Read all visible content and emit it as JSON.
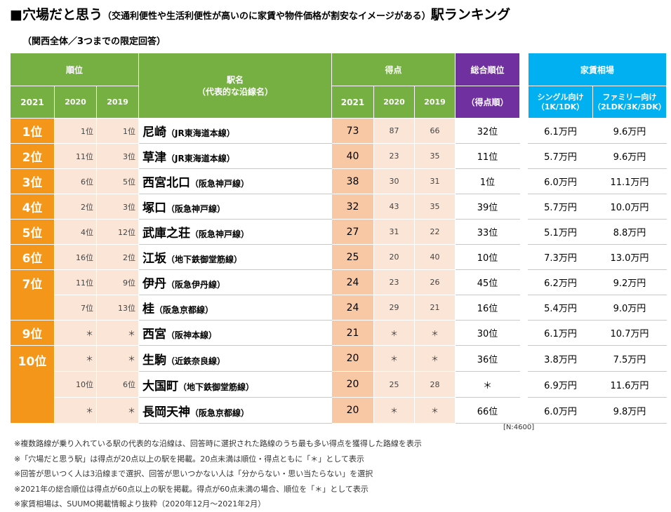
{
  "title": {
    "main": "■穴場だと思う",
    "paren": "（交通利便性や生活利便性が高いのに家賃や物件価格が割安なイメージがある）",
    "tail": "駅ランキング"
  },
  "subtitle": "（関西全体／3つまでの限定回答）",
  "header": {
    "rank_group": "順位",
    "y2021": "2021",
    "y2020": "2020",
    "y2019": "2019",
    "station": "駅名",
    "station_sub": "（代表的な沿線名）",
    "score_group": "得点",
    "overall": "総合順位",
    "overall_sub": "（得点順）",
    "rent_group": "家賃相場",
    "single": "シングル向け（1K/1DK）",
    "family": "ファミリー向け（2LDK/3K/3DK）"
  },
  "rows": [
    {
      "rank2021": "1位",
      "rank2020": "1位",
      "rank2019": "1位",
      "name": "尼崎",
      "line": "（JR東海道本線）",
      "pt2021": "73",
      "pt2020": "87",
      "pt2019": "66",
      "overall": "32位",
      "single": "6.1万円",
      "family": "9.6万円"
    },
    {
      "rank2021": "2位",
      "rank2020": "11位",
      "rank2019": "3位",
      "name": "草津",
      "line": "（JR東海道本線）",
      "pt2021": "40",
      "pt2020": "23",
      "pt2019": "35",
      "overall": "11位",
      "single": "5.7万円",
      "family": "9.6万円"
    },
    {
      "rank2021": "3位",
      "rank2020": "6位",
      "rank2019": "5位",
      "name": "西宮北口",
      "line": "（阪急神戸線）",
      "pt2021": "38",
      "pt2020": "30",
      "pt2019": "31",
      "overall": "1位",
      "single": "6.0万円",
      "family": "11.1万円"
    },
    {
      "rank2021": "4位",
      "rank2020": "2位",
      "rank2019": "3位",
      "name": "塚口",
      "line": "（阪急神戸線）",
      "pt2021": "32",
      "pt2020": "43",
      "pt2019": "35",
      "overall": "39位",
      "single": "5.7万円",
      "family": "10.0万円"
    },
    {
      "rank2021": "5位",
      "rank2020": "4位",
      "rank2019": "12位",
      "name": "武庫之荘",
      "line": "（阪急神戸線）",
      "pt2021": "27",
      "pt2020": "31",
      "pt2019": "22",
      "overall": "33位",
      "single": "5.1万円",
      "family": "8.8万円"
    },
    {
      "rank2021": "6位",
      "rank2020": "16位",
      "rank2019": "2位",
      "name": "江坂",
      "line": "（地下鉄御堂筋線）",
      "pt2021": "25",
      "pt2020": "20",
      "pt2019": "40",
      "overall": "10位",
      "single": "7.3万円",
      "family": "13.0万円"
    },
    {
      "rank2021": "7位",
      "rank2020": "11位",
      "rank2019": "9位",
      "name": "伊丹",
      "line": "（阪急伊丹線）",
      "pt2021": "24",
      "pt2020": "23",
      "pt2019": "26",
      "overall": "45位",
      "single": "6.2万円",
      "family": "9.2万円"
    },
    {
      "rank2021": "",
      "rank2020": "7位",
      "rank2019": "13位",
      "name": "桂",
      "line": "（阪急京都線）",
      "pt2021": "24",
      "pt2020": "29",
      "pt2019": "21",
      "overall": "16位",
      "single": "5.4万円",
      "family": "9.0万円"
    },
    {
      "rank2021": "9位",
      "rank2020": "＊",
      "rank2019": "＊",
      "name": "西宮",
      "line": "（阪神本線）",
      "pt2021": "21",
      "pt2020": "＊",
      "pt2019": "＊",
      "overall": "30位",
      "single": "6.1万円",
      "family": "10.7万円"
    },
    {
      "rank2021": "10位",
      "rank2020": "＊",
      "rank2019": "＊",
      "name": "生駒",
      "line": "（近鉄奈良線）",
      "pt2021": "20",
      "pt2020": "＊",
      "pt2019": "＊",
      "overall": "36位",
      "single": "3.8万円",
      "family": "7.5万円"
    },
    {
      "rank2021": "",
      "rank2020": "10位",
      "rank2019": "6位",
      "name": "大国町",
      "line": "（地下鉄御堂筋線）",
      "pt2021": "20",
      "pt2020": "25",
      "pt2019": "28",
      "overall": "＊",
      "single": "6.9万円",
      "family": "11.6万円"
    },
    {
      "rank2021": "",
      "rank2020": "＊",
      "rank2019": "＊",
      "name": "長岡天神",
      "line": "（阪急京都線）",
      "pt2021": "20",
      "pt2020": "＊",
      "pt2019": "＊",
      "overall": "66位",
      "single": "6.0万円",
      "family": "9.8万円"
    }
  ],
  "sample_note": "[N:4600]",
  "notes": [
    "※複数路線が乗り入れている駅の代表的な沿線は、回答時に選択された路線のうち最も多い得点を獲得した路線を表示",
    "※「穴場だと思う駅」は得点が20点以上の駅を掲載。20点未満は順位・得点ともに「＊」として表示",
    "※回答が思いつく人は3沿線まで選択、回答が思いつかない人は「分からない・思い当たらない」を選択",
    "※2021年の総合順位は得点が60点以上の駅を掲載。得点が60点未満の場合、順位を「＊」として表示",
    "※家賃相場は、SUUMO掲載情報より抜粋（2020年12月～2021年2月）"
  ],
  "colors": {
    "header_green": "#76b043",
    "header_purple": "#7030a0",
    "header_blue": "#00b0f0",
    "rank_orange": "#f39619",
    "score_peach": "#f8c7a3",
    "light_peach": "#fbe5d6"
  }
}
